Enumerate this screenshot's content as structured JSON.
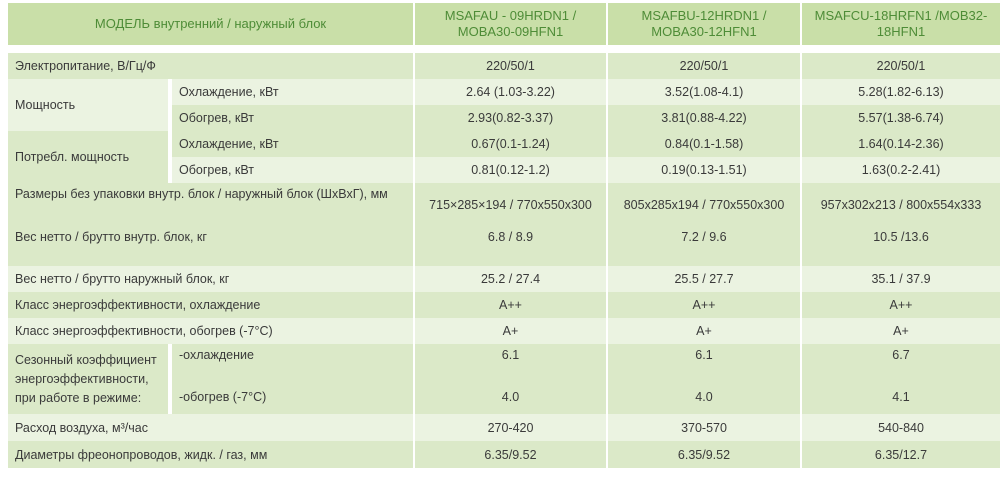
{
  "header": {
    "model_label": "МОДЕЛЬ  внутренний  /  наружный блок",
    "models": [
      "MSAFAU - 09HRDN1 / MOBA30-09HFN1",
      "MSAFBU-12HRDN1 / MOBA30-12HFN1",
      "MSAFCU-18HRFN1 /MOB32-18HFN1"
    ]
  },
  "rows": {
    "power_supply": {
      "label": "Электропитание, В/Гц/Ф",
      "values": [
        "220/50/1",
        "220/50/1",
        "220/50/1"
      ]
    },
    "capacity": {
      "label": "Мощность",
      "cooling": {
        "label": "Охлаждение, кВт",
        "values": [
          "2.64 (1.03-3.22)",
          "3.52(1.08-4.1)",
          "5.28(1.82-6.13)"
        ]
      },
      "heating": {
        "label": "Обогрев, кВт",
        "values": [
          "2.93(0.82-3.37)",
          "3.81(0.88-4.22)",
          "5.57(1.38-6.74)"
        ]
      }
    },
    "consumption": {
      "label": "Потребл. мощность",
      "cooling": {
        "label": "Охлаждение, кВт",
        "values": [
          "0.67(0.1-1.24)",
          "0.84(0.1-1.58)",
          "1.64(0.14-2.36)"
        ]
      },
      "heating": {
        "label": "Обогрев, кВт",
        "values": [
          "0.81(0.12-1.2)",
          "0.19(0.13-1.51)",
          "1.63(0.2-2.41)"
        ]
      }
    },
    "dimensions": {
      "label": "Размеры без упаковки внутр. блок / наружный блок  (ШхВхГ), мм",
      "values": [
        "715×285×194 / 770x550x300",
        "805x285x194 / 770x550x300",
        "957x302x213 / 800x554x333"
      ]
    },
    "weight_indoor": {
      "label": "Вес нетто / брутто внутр. блок, кг",
      "values": [
        "6.8 / 8.9",
        "7.2 / 9.6",
        "10.5 /13.6"
      ]
    },
    "weight_outdoor": {
      "label": "Вес нетто / брутто наружный блок, кг",
      "values": [
        "25.2 / 27.4",
        "25.5 / 27.7",
        "35.1 / 37.9"
      ]
    },
    "class_cooling": {
      "label": "Класс энергоэффективности, охлаждение",
      "values": [
        "A++",
        "A++",
        "A++"
      ]
    },
    "class_heating": {
      "label": "Класс энергоэффективности, обогрев  (-7°C)",
      "values": [
        "A+",
        "A+",
        "A+"
      ]
    },
    "seasonal": {
      "label": "Сезонный коэффициент энергоэффективности, при работе в режиме:",
      "cooling": {
        "label": "-охлаждение",
        "values": [
          "6.1",
          "6.1",
          "6.7"
        ]
      },
      "heating": {
        "label": "-обогрев  (-7°C)",
        "values": [
          "4.0",
          "4.0",
          "4.1"
        ]
      }
    },
    "airflow": {
      "label": "Расход воздуха, м³/час",
      "values": [
        "270-420",
        "370-570",
        "540-840"
      ]
    },
    "pipes": {
      "label": "Диаметры фреонопроводов, жидк. / газ, мм",
      "values": [
        "6.35/9.52",
        "6.35/9.52",
        "6.35/12.7"
      ]
    }
  }
}
